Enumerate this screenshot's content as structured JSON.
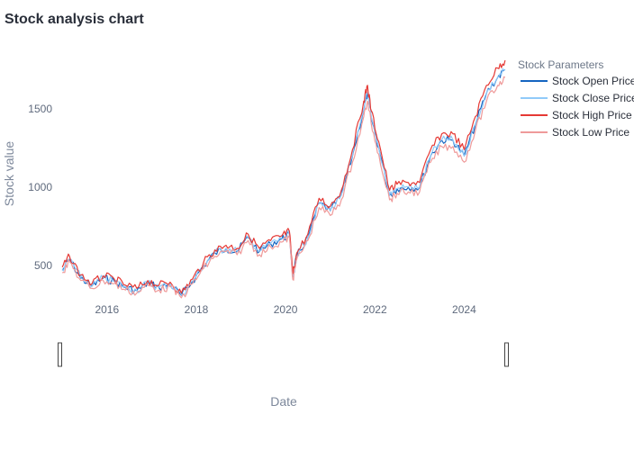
{
  "chart_data": {
    "type": "line",
    "title": "Stock analysis chart",
    "xlabel": "Date",
    "ylabel": "Stock value",
    "x_ticks": [
      "2016",
      "2018",
      "2020",
      "2022",
      "2024"
    ],
    "y_ticks": [
      500,
      1000,
      1500
    ],
    "xlim": [
      "2014-12-01",
      "2024-12-31"
    ],
    "ylim": [
      300,
      1850
    ],
    "grid": false,
    "legend": {
      "title": "Stock Parameters",
      "placement": "top-right"
    },
    "x": [
      "2015-01",
      "2015-03",
      "2015-06",
      "2015-09",
      "2015-12",
      "2016-03",
      "2016-06",
      "2016-09",
      "2016-12",
      "2017-03",
      "2017-06",
      "2017-09",
      "2017-12",
      "2018-03",
      "2018-06",
      "2018-09",
      "2018-12",
      "2019-03",
      "2019-06",
      "2019-09",
      "2019-12",
      "2020-02",
      "2020-03",
      "2020-04",
      "2020-07",
      "2020-10",
      "2021-01",
      "2021-04",
      "2021-07",
      "2021-10",
      "2021-11",
      "2021-12",
      "2022-02",
      "2022-05",
      "2022-07",
      "2022-10",
      "2023-01",
      "2023-04",
      "2023-07",
      "2023-10",
      "2024-01",
      "2024-04",
      "2024-07",
      "2024-10",
      "2024-12"
    ],
    "series": [
      {
        "name": "Stock Open Price",
        "color": "#1565c0",
        "values": [
          470,
          540,
          420,
          370,
          420,
          400,
          360,
          340,
          390,
          360,
          380,
          310,
          400,
          500,
          580,
          610,
          590,
          680,
          590,
          640,
          670,
          700,
          430,
          560,
          680,
          900,
          850,
          950,
          1200,
          1500,
          1600,
          1450,
          1250,
          950,
          990,
          1000,
          1000,
          1200,
          1300,
          1300,
          1200,
          1400,
          1600,
          1700,
          1750
        ]
      },
      {
        "name": "Stock Close Price",
        "color": "#90caf9",
        "values": [
          475,
          545,
          425,
          372,
          422,
          402,
          362,
          342,
          392,
          362,
          382,
          312,
          402,
          502,
          582,
          612,
          592,
          682,
          592,
          642,
          672,
          702,
          432,
          562,
          682,
          902,
          852,
          952,
          1202,
          1502,
          1602,
          1452,
          1252,
          952,
          992,
          1002,
          1002,
          1202,
          1302,
          1302,
          1202,
          1402,
          1602,
          1702,
          1752
        ]
      },
      {
        "name": "Stock High Price",
        "color": "#e53935",
        "values": [
          490,
          560,
          440,
          385,
          435,
          415,
          375,
          355,
          405,
          375,
          395,
          325,
          415,
          520,
          600,
          630,
          610,
          700,
          610,
          660,
          690,
          720,
          450,
          580,
          700,
          930,
          880,
          980,
          1240,
          1550,
          1650,
          1490,
          1290,
          980,
          1020,
          1030,
          1030,
          1240,
          1340,
          1340,
          1240,
          1450,
          1650,
          1760,
          1810
        ]
      },
      {
        "name": "Stock Low Price",
        "color": "#ef9a9a",
        "values": [
          455,
          525,
          405,
          355,
          405,
          385,
          345,
          325,
          375,
          345,
          365,
          295,
          385,
          480,
          560,
          590,
          570,
          660,
          570,
          620,
          650,
          680,
          410,
          540,
          660,
          870,
          820,
          920,
          1160,
          1450,
          1550,
          1410,
          1210,
          920,
          960,
          970,
          970,
          1160,
          1260,
          1260,
          1160,
          1360,
          1550,
          1650,
          1700
        ]
      }
    ]
  },
  "range_slider": {
    "left_handle_icon": "range-handle",
    "right_handle_icon": "range-handle"
  }
}
